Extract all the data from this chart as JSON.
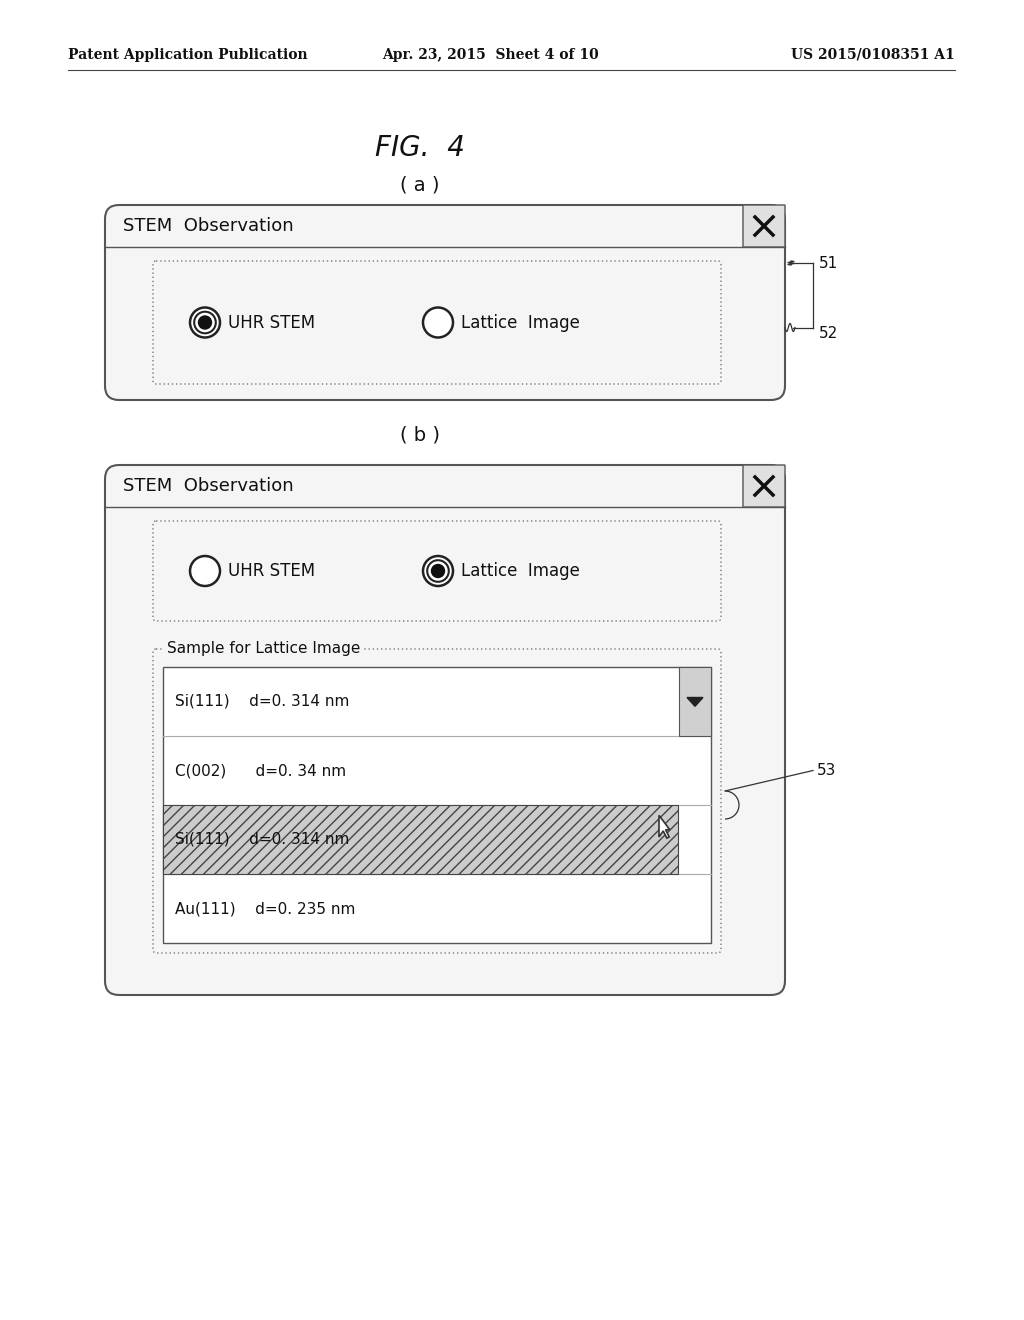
{
  "header_left": "Patent Application Publication",
  "header_mid": "Apr. 23, 2015  Sheet 4 of 10",
  "header_right": "US 2015/0108351 A1",
  "fig_label": "FIG.  4",
  "sub_a": "( a )",
  "sub_b": "( b )",
  "dialog_title": "STEM  Observation",
  "radio_label_uhr": "UHR STEM",
  "radio_label_lattice": "Lattice  Image",
  "sample_label": "Sample for Lattice Image",
  "dropdown_row1": "Si(111)    d=0. 314 nm",
  "dropdown_row2": "C(002)      d=0. 34 nm",
  "dropdown_row3": "Si(111)    d=0. 314 nm",
  "dropdown_row4": "Au(111)    d=0. 235 nm",
  "label_51": "51",
  "label_52": "52",
  "label_53": "53",
  "bg_color": "#ffffff",
  "header_fontsize": 10,
  "fig_fontsize": 20,
  "sub_fontsize": 14,
  "dialog_title_fontsize": 13,
  "radio_fontsize": 12,
  "sample_fontsize": 11,
  "dropdown_fontsize": 11,
  "label_fontsize": 11
}
